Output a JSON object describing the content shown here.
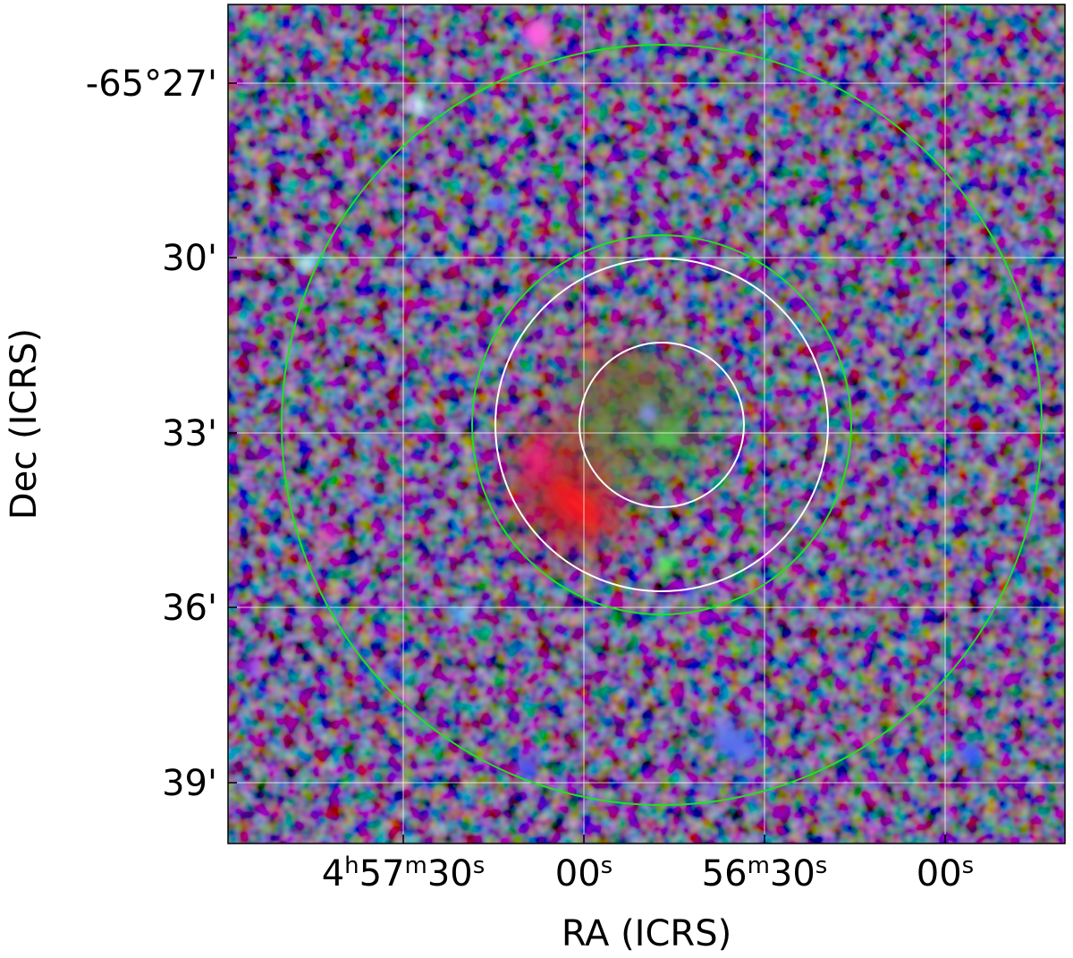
{
  "figure": {
    "xlabel": "RA (ICRS)",
    "ylabel": "Dec (ICRS)",
    "dec_ticks": [
      "-65°27'",
      "30'",
      "33'",
      "36'",
      "39'"
    ],
    "ra_ticks": [
      {
        "main": "4",
        "sup1": "h",
        "mid": "57",
        "sup2": "m",
        "end": "30",
        "sup3": "s"
      },
      {
        "main": "00",
        "sup3": "s"
      },
      {
        "mid": "56",
        "sup2": "m",
        "end": "30",
        "sup3": "s"
      },
      {
        "main": "00",
        "sup3": "s"
      }
    ],
    "grid_color": "#ffffff",
    "outer_circle_color": "#00dd00",
    "inner_circle_color": "#ffffff"
  }
}
